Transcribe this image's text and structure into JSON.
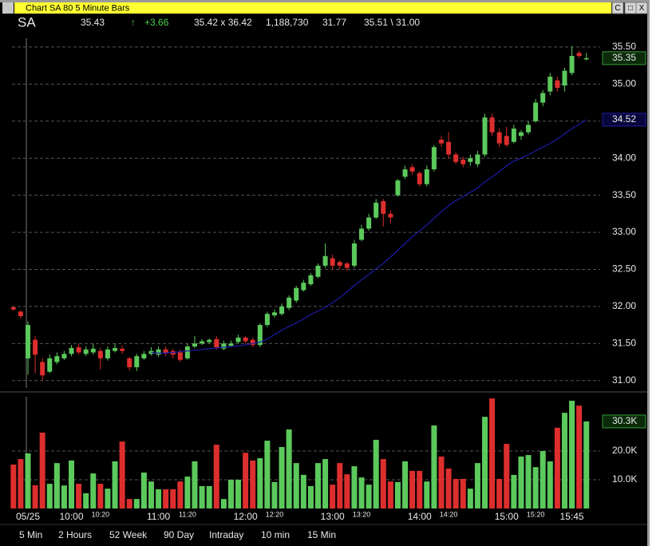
{
  "window": {
    "title": "Chart SA 80 5 Minute Bars",
    "buttons": [
      "C",
      "□",
      "X"
    ]
  },
  "quote": {
    "symbol": "SA",
    "last": "35.43",
    "change": "+3.66",
    "bid_ask": "35.42 x 36.42",
    "volume": "1,188,730",
    "open": "31.77",
    "high_low": "35.51 \\ 31.00"
  },
  "chart_data": {
    "type": "candlestick",
    "xlim": [
      -0.2,
      80.9
    ],
    "open": [
      31.99,
      31.93,
      31.3,
      31.55,
      31.25,
      31.12,
      31.25,
      31.3,
      31.36,
      31.45,
      31.36,
      31.38,
      31.4,
      31.3,
      31.4,
      31.43,
      31.3,
      31.18,
      31.3,
      31.36,
      31.35,
      31.42,
      31.4,
      31.38,
      31.3,
      31.46,
      31.5,
      31.52,
      31.56,
      31.43,
      31.47,
      31.52,
      31.58,
      31.55,
      31.48,
      31.75,
      31.88,
      31.9,
      31.98,
      32.08,
      32.22,
      32.3,
      32.4,
      32.55,
      32.65,
      32.6,
      32.58,
      32.55,
      32.9,
      33.05,
      33.2,
      33.42,
      33.25,
      33.5,
      33.75,
      33.88,
      33.8,
      33.65,
      33.85,
      34.25,
      34.22,
      34.05,
      33.98,
      33.95,
      33.92,
      34.05,
      34.55,
      34.35,
      34.3,
      34.22,
      34.3,
      34.35,
      34.5,
      34.75,
      34.9,
      35.05,
      34.98,
      35.15,
      35.42,
      35.34
    ],
    "high": [
      32.0,
      31.95,
      31.8,
      31.6,
      31.3,
      31.35,
      31.38,
      31.4,
      31.48,
      31.5,
      31.46,
      31.5,
      31.44,
      31.46,
      31.5,
      31.47,
      31.32,
      31.36,
      31.4,
      31.45,
      31.46,
      31.46,
      31.43,
      31.42,
      31.5,
      31.6,
      31.56,
      31.57,
      31.6,
      31.54,
      31.54,
      31.62,
      31.6,
      31.58,
      31.77,
      31.93,
      31.96,
      32.04,
      32.15,
      32.28,
      32.36,
      32.45,
      32.58,
      32.85,
      32.7,
      32.62,
      32.6,
      32.9,
      33.1,
      33.25,
      33.45,
      33.45,
      33.3,
      33.72,
      33.9,
      33.92,
      33.82,
      33.9,
      34.18,
      34.3,
      34.35,
      34.08,
      34.02,
      34.05,
      34.1,
      34.6,
      34.6,
      34.4,
      34.42,
      34.45,
      34.38,
      34.5,
      34.8,
      34.92,
      35.15,
      35.1,
      35.22,
      35.51,
      35.45,
      35.42
    ],
    "low": [
      31.94,
      31.84,
      31.08,
      31.1,
      31.0,
      31.1,
      31.22,
      31.28,
      31.33,
      31.35,
      31.33,
      31.35,
      31.15,
      31.27,
      31.38,
      31.36,
      31.14,
      31.13,
      31.28,
      31.34,
      31.32,
      31.33,
      31.3,
      31.25,
      31.28,
      31.44,
      31.48,
      31.5,
      31.42,
      31.41,
      31.45,
      31.5,
      31.5,
      31.45,
      31.45,
      31.72,
      31.85,
      31.88,
      31.95,
      32.05,
      32.2,
      32.28,
      32.38,
      32.52,
      32.5,
      32.5,
      32.48,
      32.52,
      32.88,
      33.02,
      33.18,
      33.08,
      33.12,
      33.48,
      33.72,
      33.78,
      33.62,
      33.62,
      33.82,
      34.15,
      34.0,
      33.92,
      33.88,
      33.9,
      33.88,
      34.02,
      34.3,
      34.15,
      34.15,
      34.2,
      34.25,
      34.32,
      34.48,
      34.7,
      34.85,
      34.9,
      34.9,
      35.12,
      35.35,
      35.32
    ],
    "close": [
      31.96,
      31.87,
      31.75,
      31.35,
      31.07,
      31.3,
      31.33,
      31.36,
      31.44,
      31.38,
      31.42,
      31.43,
      31.3,
      31.42,
      31.44,
      31.4,
      31.18,
      31.33,
      31.36,
      31.4,
      31.42,
      31.37,
      31.35,
      31.28,
      31.46,
      31.5,
      31.53,
      31.55,
      31.45,
      31.5,
      31.5,
      31.58,
      31.53,
      31.48,
      31.75,
      31.9,
      31.92,
      32.0,
      32.12,
      32.25,
      32.32,
      32.42,
      32.55,
      32.68,
      32.55,
      32.55,
      32.52,
      32.85,
      33.05,
      33.2,
      33.4,
      33.25,
      33.2,
      33.7,
      33.85,
      33.82,
      33.65,
      33.85,
      34.15,
      34.2,
      34.05,
      33.95,
      33.92,
      34.0,
      34.05,
      34.55,
      34.35,
      34.2,
      34.18,
      34.4,
      34.35,
      34.45,
      34.75,
      34.88,
      35.1,
      34.95,
      35.18,
      35.38,
      35.38,
      35.35
    ],
    "last_label": "35.35",
    "up_color": "#5cc95c",
    "down_color": "#dd2e2e",
    "ylim": [
      30.89,
      35.65
    ],
    "yticks": [
      {
        "value": 31,
        "label": "31.00"
      },
      {
        "value": 31.5,
        "label": "31.50"
      },
      {
        "value": 32,
        "label": "32.00"
      },
      {
        "value": 32.5,
        "label": "32.50"
      },
      {
        "value": 33,
        "label": "33.00"
      },
      {
        "value": 33.5,
        "label": "33.50"
      },
      {
        "value": 34,
        "label": "34.00"
      },
      {
        "value": 34.5,
        "label": "34.50"
      },
      {
        "value": 35,
        "label": "35.00"
      },
      {
        "value": 35.5,
        "label": "35.50"
      }
    ],
    "grid": true,
    "ma": {
      "color": "#1c1ca8",
      "last_label": "34.52",
      "values": [
        null,
        null,
        null,
        null,
        null,
        null,
        null,
        null,
        null,
        null,
        null,
        null,
        null,
        null,
        null,
        null,
        null,
        null,
        null,
        31.38,
        31.37,
        31.37,
        31.38,
        31.39,
        31.4,
        31.41,
        31.42,
        31.43,
        31.44,
        31.45,
        31.46,
        31.47,
        31.48,
        31.5,
        31.52,
        31.56,
        31.62,
        31.68,
        31.73,
        31.78,
        31.83,
        31.89,
        31.94,
        31.99,
        32.05,
        32.12,
        32.2,
        32.28,
        32.36,
        32.43,
        32.51,
        32.58,
        32.67,
        32.76,
        32.85,
        32.94,
        33.02,
        33.1,
        33.19,
        33.28,
        33.36,
        33.43,
        33.48,
        33.54,
        33.6,
        33.68,
        33.75,
        33.82,
        33.9,
        33.96,
        34.0,
        34.05,
        34.1,
        34.15,
        34.2,
        34.26,
        34.33,
        34.4,
        34.46,
        34.52
      ]
    },
    "volume": {
      "values": [
        15300,
        17200,
        19200,
        8100,
        26400,
        8600,
        15800,
        8000,
        16700,
        8600,
        5300,
        12200,
        8600,
        6900,
        16400,
        23300,
        3300,
        3300,
        12500,
        9400,
        6700,
        6700,
        6700,
        9400,
        11100,
        16400,
        7800,
        7800,
        22200,
        3300,
        10000,
        10000,
        19400,
        16700,
        17500,
        23600,
        9200,
        21400,
        27500,
        15800,
        11700,
        7800,
        15800,
        17200,
        8300,
        15800,
        11900,
        14700,
        10800,
        8300,
        23900,
        17200,
        9400,
        9200,
        16400,
        13100,
        13100,
        9400,
        28900,
        18100,
        13900,
        10300,
        10300,
        6900,
        15800,
        31900,
        38300,
        10300,
        22500,
        11700,
        18100,
        18600,
        14400,
        20000,
        16400,
        28100,
        33300,
        37500,
        35800,
        30300
      ],
      "last_label": "30.3K",
      "ylim": [
        0,
        38900
      ],
      "yticks": [
        {
          "value": 10000,
          "label": "10.0K"
        },
        {
          "value": 20000,
          "label": "20.0K"
        }
      ]
    },
    "xticks": [
      {
        "value": 2,
        "label": "05/25"
      },
      {
        "value": 8,
        "label": "10:00"
      },
      {
        "value": 20,
        "label": "11:00"
      },
      {
        "value": 32,
        "label": "12:00"
      },
      {
        "value": 44,
        "label": "13:00"
      },
      {
        "value": 56,
        "label": "14:00"
      },
      {
        "value": 68,
        "label": "15:00"
      },
      {
        "value": 77,
        "label": "15:45"
      }
    ],
    "xticks_minor": [
      {
        "value": 12,
        "label": "10:20"
      },
      {
        "value": 24,
        "label": "11:20"
      },
      {
        "value": 36,
        "label": "12:20"
      },
      {
        "value": 48,
        "label": "13:20"
      },
      {
        "value": 60,
        "label": "14:20"
      },
      {
        "value": 72,
        "label": "15:20"
      }
    ]
  },
  "toolbar": [
    "5 Min",
    "2 Hours",
    "52 Week",
    "90 Day",
    "Intraday",
    "10 min",
    "15 Min"
  ]
}
